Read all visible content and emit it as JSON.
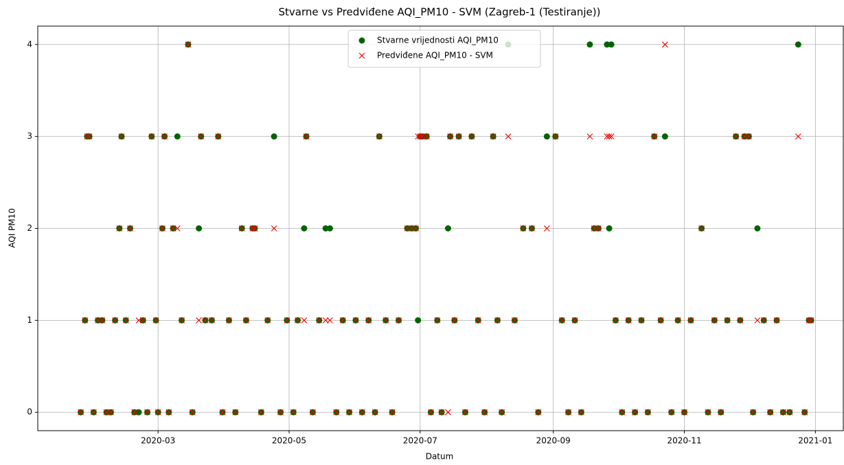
{
  "chart_data": {
    "type": "scatter",
    "title": "Stvarne vs Predviđene AQI_PM10 - SVM (Zagreb-1 (Testiranje))",
    "xlabel": "Datum",
    "ylabel": "AQI PM10",
    "x": [
      "2020-01-25",
      "2020-01-27",
      "2020-01-28",
      "2020-01-29",
      "2020-01-31",
      "2020-02-02",
      "2020-02-04",
      "2020-02-06",
      "2020-02-08",
      "2020-02-10",
      "2020-02-12",
      "2020-02-13",
      "2020-02-15",
      "2020-02-17",
      "2020-02-19",
      "2020-02-21",
      "2020-02-23",
      "2020-02-25",
      "2020-02-27",
      "2020-02-29",
      "2020-03-01",
      "2020-03-03",
      "2020-03-04",
      "2020-03-06",
      "2020-03-08",
      "2020-03-10",
      "2020-03-12",
      "2020-03-15",
      "2020-03-17",
      "2020-03-20",
      "2020-03-21",
      "2020-03-23",
      "2020-03-26",
      "2020-03-29",
      "2020-03-31",
      "2020-04-03",
      "2020-04-06",
      "2020-04-09",
      "2020-04-11",
      "2020-04-14",
      "2020-04-15",
      "2020-04-18",
      "2020-04-21",
      "2020-04-24",
      "2020-04-27",
      "2020-04-30",
      "2020-05-03",
      "2020-05-05",
      "2020-05-08",
      "2020-05-09",
      "2020-05-12",
      "2020-05-15",
      "2020-05-18",
      "2020-05-20",
      "2020-05-23",
      "2020-05-26",
      "2020-05-29",
      "2020-06-01",
      "2020-06-04",
      "2020-06-07",
      "2020-06-10",
      "2020-06-12",
      "2020-06-15",
      "2020-06-18",
      "2020-06-21",
      "2020-06-25",
      "2020-06-27",
      "2020-06-29",
      "2020-06-30",
      "2020-07-01",
      "2020-07-02",
      "2020-07-04",
      "2020-07-06",
      "2020-07-09",
      "2020-07-11",
      "2020-07-14",
      "2020-07-15",
      "2020-07-17",
      "2020-07-19",
      "2020-07-22",
      "2020-07-25",
      "2020-07-28",
      "2020-07-31",
      "2020-08-04",
      "2020-08-06",
      "2020-08-08",
      "2020-08-11",
      "2020-08-14",
      "2020-08-18",
      "2020-08-22",
      "2020-08-25",
      "2020-08-29",
      "2020-09-02",
      "2020-09-05",
      "2020-09-08",
      "2020-09-11",
      "2020-09-14",
      "2020-09-18",
      "2020-09-20",
      "2020-09-22",
      "2020-09-26",
      "2020-09-27",
      "2020-09-28",
      "2020-09-30",
      "2020-10-03",
      "2020-10-06",
      "2020-10-09",
      "2020-10-12",
      "2020-10-15",
      "2020-10-18",
      "2020-10-21",
      "2020-10-23",
      "2020-10-26",
      "2020-10-29",
      "2020-11-01",
      "2020-11-04",
      "2020-11-09",
      "2020-11-12",
      "2020-11-15",
      "2020-11-18",
      "2020-11-21",
      "2020-11-25",
      "2020-11-27",
      "2020-11-29",
      "2020-12-01",
      "2020-12-03",
      "2020-12-05",
      "2020-12-08",
      "2020-12-11",
      "2020-12-14",
      "2020-12-17",
      "2020-12-20",
      "2020-12-24",
      "2020-12-27",
      "2020-12-29",
      "2020-12-30"
    ],
    "series": [
      {
        "name": "Stvarne vrijednosti AQI_PM10",
        "color": "#006400",
        "marker": "o",
        "values": [
          0,
          1,
          3,
          3,
          0,
          1,
          1,
          0,
          0,
          1,
          2,
          3,
          1,
          2,
          0,
          0,
          1,
          0,
          3,
          1,
          0,
          2,
          3,
          0,
          2,
          3,
          1,
          4,
          0,
          2,
          3,
          1,
          1,
          3,
          0,
          1,
          0,
          2,
          1,
          2,
          2,
          0,
          1,
          3,
          0,
          1,
          0,
          1,
          2,
          3,
          0,
          1,
          2,
          2,
          0,
          1,
          0,
          1,
          0,
          1,
          0,
          3,
          1,
          0,
          1,
          2,
          2,
          2,
          1,
          3,
          3,
          3,
          0,
          1,
          0,
          2,
          3,
          1,
          3,
          0,
          3,
          1,
          0,
          3,
          1,
          0,
          4,
          1,
          2,
          2,
          0,
          3,
          3,
          1,
          0,
          1,
          0,
          4,
          2,
          2,
          4,
          2,
          4,
          1,
          0,
          1,
          0,
          1,
          0,
          3,
          1,
          3,
          0,
          1,
          0,
          1,
          2,
          0,
          1,
          0,
          1,
          3,
          1,
          3,
          3,
          0,
          2,
          1,
          0,
          1,
          0,
          0,
          4,
          0,
          1,
          1
        ]
      },
      {
        "name": "Predviđene AQI_PM10 - SVM",
        "color": "#ff0000",
        "marker": "x",
        "values": [
          0,
          1,
          3,
          3,
          0,
          1,
          1,
          0,
          0,
          1,
          2,
          3,
          1,
          2,
          0,
          1,
          1,
          0,
          3,
          1,
          0,
          2,
          3,
          0,
          2,
          2,
          1,
          4,
          0,
          1,
          3,
          1,
          1,
          3,
          0,
          1,
          0,
          2,
          1,
          2,
          2,
          0,
          1,
          2,
          0,
          1,
          0,
          1,
          1,
          3,
          0,
          1,
          1,
          1,
          0,
          1,
          0,
          1,
          0,
          1,
          0,
          3,
          1,
          0,
          1,
          2,
          2,
          2,
          3,
          3,
          3,
          3,
          0,
          1,
          0,
          0,
          3,
          1,
          3,
          0,
          3,
          1,
          0,
          3,
          1,
          0,
          3,
          1,
          2,
          2,
          0,
          2,
          3,
          1,
          0,
          1,
          0,
          3,
          2,
          2,
          3,
          3,
          3,
          1,
          0,
          1,
          0,
          1,
          0,
          3,
          1,
          4,
          0,
          1,
          0,
          1,
          2,
          0,
          1,
          0,
          1,
          3,
          1,
          3,
          3,
          0,
          1,
          1,
          0,
          1,
          0,
          0,
          3,
          0,
          1,
          1
        ]
      }
    ],
    "xlim": [
      "2020-01-05",
      "2021-01-14"
    ],
    "xticks": [
      {
        "value": "2020-03-01",
        "label": "2020-03"
      },
      {
        "value": "2020-05-01",
        "label": "2020-05"
      },
      {
        "value": "2020-07-01",
        "label": "2020-07"
      },
      {
        "value": "2020-09-01",
        "label": "2020-09"
      },
      {
        "value": "2020-11-01",
        "label": "2020-11"
      },
      {
        "value": "2021-01-01",
        "label": "2021-01"
      }
    ],
    "ylim": [
      -0.2,
      4.2
    ],
    "yticks": [
      0,
      1,
      2,
      3,
      4
    ],
    "grid": true,
    "legend": "upper center"
  }
}
